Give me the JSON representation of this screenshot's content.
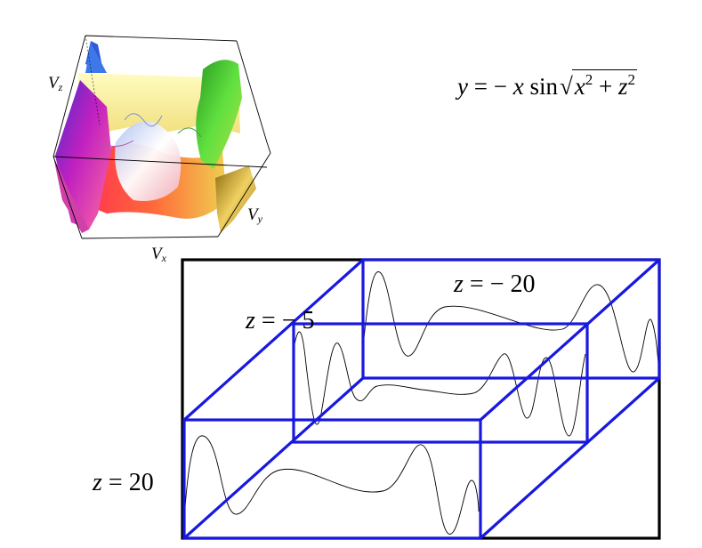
{
  "equation": {
    "lhs": "y",
    "equals": "=",
    "sign": "−",
    "var": "x",
    "func": "sin",
    "radicand_a": "x",
    "radicand_b": "z",
    "exp": "2",
    "plus": "+"
  },
  "axes": {
    "vz": {
      "base": "V",
      "sub": "z"
    },
    "vy": {
      "base": "V",
      "sub": "y"
    },
    "vx": {
      "base": "V",
      "sub": "x"
    }
  },
  "slices": [
    {
      "var": "z",
      "eq": "=",
      "value": "− 20"
    },
    {
      "var": "z",
      "eq": "=",
      "value": "− 5"
    },
    {
      "var": "z",
      "eq": "=",
      "value": "20"
    }
  ],
  "colors": {
    "box": "#1818e0",
    "frame": "#000000",
    "curve": "#000000"
  }
}
